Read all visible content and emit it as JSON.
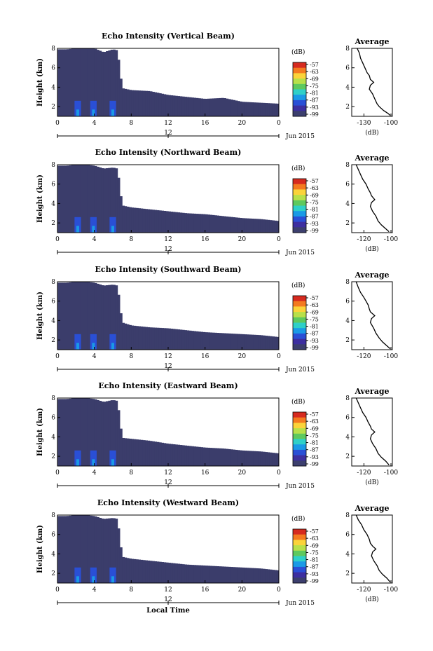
{
  "figure": {
    "xlabel": "Local Time",
    "date_label": "Jun 2015",
    "ylabel": "Height (km)",
    "colorbar_unit": "(dB)",
    "colorbar_ticks": [
      "-57",
      "-63",
      "-69",
      "-75",
      "-81",
      "-87",
      "-93",
      "-99"
    ],
    "colorbar_colors": [
      "#d62a1f",
      "#f47a20",
      "#fbd33a",
      "#b8e04a",
      "#5ec95e",
      "#2fd0c8",
      "#1a9ae6",
      "#2a4fd6",
      "#3d2fa0",
      "#3c3f6e"
    ],
    "cell_color": "#3b3d6b",
    "hour_ticks": [
      "0",
      "4",
      "8",
      "12",
      "16",
      "20",
      "0"
    ],
    "day_tick": "12",
    "height_ticks": [
      "2",
      "4",
      "6",
      "8"
    ],
    "avg_xlabel": "(dB)"
  },
  "chart_data": [
    {
      "type": "heatmap",
      "title": "Echo Intensity (Vertical Beam)",
      "xlabel": "",
      "ylabel": "Height (km)",
      "x_range_hours": [
        0,
        24
      ],
      "y_range_km": [
        1,
        8
      ],
      "cloud_top_km": [
        [
          0,
          7.9
        ],
        [
          1,
          7.9
        ],
        [
          2,
          8
        ],
        [
          3,
          8
        ],
        [
          4,
          8
        ],
        [
          5,
          7.6
        ],
        [
          6,
          7.9
        ],
        [
          6.5,
          7.8
        ],
        [
          7,
          3.9
        ],
        [
          8,
          3.7
        ],
        [
          10,
          3.6
        ],
        [
          12,
          3.2
        ],
        [
          14,
          3.0
        ],
        [
          16,
          2.8
        ],
        [
          18,
          2.9
        ],
        [
          20,
          2.5
        ],
        [
          22,
          2.4
        ],
        [
          24,
          2.3
        ]
      ],
      "colorbar": {
        "unit": "(dB)",
        "ticks": [
          -57,
          -63,
          -69,
          -75,
          -81,
          -87,
          -93,
          -99
        ]
      },
      "average_profile": {
        "title": "Average",
        "xlabel": "(dB)",
        "x_ticks": [
          "-130",
          "-100"
        ],
        "xlim": [
          -135,
          -98
        ],
        "ylim": [
          1,
          8
        ],
        "points": [
          [
            -130,
            8
          ],
          [
            -128,
            7.5
          ],
          [
            -127,
            7
          ],
          [
            -125,
            6.5
          ],
          [
            -123,
            6
          ],
          [
            -121,
            5.5
          ],
          [
            -119,
            5.2
          ],
          [
            -118,
            4.8
          ],
          [
            -115,
            4.5
          ],
          [
            -118,
            4.2
          ],
          [
            -119,
            3.8
          ],
          [
            -116,
            3.3
          ],
          [
            -114,
            2.8
          ],
          [
            -112,
            2.3
          ],
          [
            -110,
            2.0
          ],
          [
            -106,
            1.6
          ],
          [
            -102,
            1.3
          ],
          [
            -100,
            1.1
          ]
        ]
      }
    },
    {
      "type": "heatmap",
      "title": "Echo Intensity (Northward Beam)",
      "xlabel": "",
      "ylabel": "Height (km)",
      "x_range_hours": [
        0,
        24
      ],
      "y_range_km": [
        1,
        8
      ],
      "cloud_top_km": [
        [
          0,
          7.9
        ],
        [
          1,
          7.9
        ],
        [
          2,
          8
        ],
        [
          3,
          8
        ],
        [
          4,
          7.9
        ],
        [
          5,
          7.6
        ],
        [
          6,
          7.7
        ],
        [
          6.5,
          7.6
        ],
        [
          7,
          3.8
        ],
        [
          8,
          3.6
        ],
        [
          10,
          3.4
        ],
        [
          12,
          3.2
        ],
        [
          14,
          3.0
        ],
        [
          16,
          2.9
        ],
        [
          18,
          2.7
        ],
        [
          20,
          2.5
        ],
        [
          22,
          2.4
        ],
        [
          24,
          2.2
        ]
      ],
      "colorbar": {
        "unit": "(dB)",
        "ticks": [
          -57,
          -63,
          -69,
          -75,
          -81,
          -87,
          -93,
          -99
        ]
      },
      "average_profile": {
        "title": "Average",
        "xlabel": "(dB)",
        "x_ticks": [
          "-120",
          "-100"
        ],
        "xlim": [
          -135,
          -98
        ],
        "ylim": [
          1,
          8
        ],
        "points": [
          [
            -131,
            8
          ],
          [
            -129,
            7.5
          ],
          [
            -127,
            7
          ],
          [
            -125,
            6.5
          ],
          [
            -122,
            6
          ],
          [
            -120,
            5.5
          ],
          [
            -118,
            5.1
          ],
          [
            -117,
            4.8
          ],
          [
            -114,
            4.4
          ],
          [
            -117,
            4.1
          ],
          [
            -118,
            3.7
          ],
          [
            -116,
            3.2
          ],
          [
            -113,
            2.7
          ],
          [
            -111,
            2.2
          ],
          [
            -108,
            1.8
          ],
          [
            -104,
            1.4
          ],
          [
            -101,
            1.1
          ]
        ]
      }
    },
    {
      "type": "heatmap",
      "title": "Echo Intensity (Southward Beam)",
      "xlabel": "",
      "ylabel": "Height (km)",
      "x_range_hours": [
        0,
        24
      ],
      "y_range_km": [
        1,
        8
      ],
      "cloud_top_km": [
        [
          0,
          7.9
        ],
        [
          1,
          7.9
        ],
        [
          2,
          8
        ],
        [
          3,
          8
        ],
        [
          4,
          7.9
        ],
        [
          5,
          7.6
        ],
        [
          6,
          7.7
        ],
        [
          6.5,
          7.6
        ],
        [
          7,
          3.8
        ],
        [
          8,
          3.5
        ],
        [
          10,
          3.3
        ],
        [
          12,
          3.2
        ],
        [
          14,
          3.0
        ],
        [
          16,
          2.8
        ],
        [
          18,
          2.7
        ],
        [
          20,
          2.6
        ],
        [
          22,
          2.5
        ],
        [
          24,
          2.3
        ]
      ],
      "colorbar": {
        "unit": "(dB)",
        "ticks": [
          -57,
          -63,
          -69,
          -75,
          -81,
          -87,
          -93,
          -99
        ]
      },
      "average_profile": {
        "title": "Average",
        "xlabel": "",
        "x_ticks": [
          "-120",
          "-100"
        ],
        "xlim": [
          -135,
          -98
        ],
        "ylim": [
          1,
          8
        ],
        "points": [
          [
            -131,
            8
          ],
          [
            -129,
            7.4
          ],
          [
            -127,
            6.9
          ],
          [
            -124,
            6.4
          ],
          [
            -122,
            6
          ],
          [
            -120,
            5.6
          ],
          [
            -119,
            5.2
          ],
          [
            -118,
            4.9
          ],
          [
            -114,
            4.5
          ],
          [
            -117,
            4.2
          ],
          [
            -118,
            3.8
          ],
          [
            -115,
            3.2
          ],
          [
            -113,
            2.7
          ],
          [
            -110,
            2.2
          ],
          [
            -107,
            1.8
          ],
          [
            -103,
            1.4
          ],
          [
            -100,
            1.1
          ]
        ]
      }
    },
    {
      "type": "heatmap",
      "title": "Echo Intensity (Eastward Beam)",
      "xlabel": "",
      "ylabel": "Height (km)",
      "x_range_hours": [
        0,
        24
      ],
      "y_range_km": [
        1,
        8
      ],
      "cloud_top_km": [
        [
          0,
          7.9
        ],
        [
          1,
          7.9
        ],
        [
          2,
          8
        ],
        [
          3,
          8
        ],
        [
          4,
          7.9
        ],
        [
          5,
          7.6
        ],
        [
          6,
          7.8
        ],
        [
          6.5,
          7.7
        ],
        [
          7,
          3.9
        ],
        [
          8,
          3.8
        ],
        [
          10,
          3.6
        ],
        [
          12,
          3.3
        ],
        [
          14,
          3.1
        ],
        [
          16,
          2.9
        ],
        [
          18,
          2.8
        ],
        [
          20,
          2.6
        ],
        [
          22,
          2.5
        ],
        [
          24,
          2.3
        ]
      ],
      "colorbar": {
        "unit": "(dB)",
        "ticks": [
          -57,
          -63,
          -69,
          -75,
          -81,
          -87,
          -93,
          -99
        ]
      },
      "average_profile": {
        "title": "Average",
        "xlabel": "(dB)",
        "x_ticks": [
          "-120",
          "-100"
        ],
        "xlim": [
          -135,
          -98
        ],
        "ylim": [
          1,
          8
        ],
        "points": [
          [
            -131,
            8
          ],
          [
            -129,
            7.5
          ],
          [
            -127,
            7
          ],
          [
            -125,
            6.5
          ],
          [
            -122,
            6
          ],
          [
            -120,
            5.5
          ],
          [
            -118,
            5.1
          ],
          [
            -117,
            4.8
          ],
          [
            -114,
            4.5
          ],
          [
            -117,
            4.2
          ],
          [
            -118,
            3.8
          ],
          [
            -116,
            3.3
          ],
          [
            -113,
            2.8
          ],
          [
            -111,
            2.3
          ],
          [
            -108,
            1.9
          ],
          [
            -104,
            1.5
          ],
          [
            -101,
            1.1
          ]
        ]
      }
    },
    {
      "type": "heatmap",
      "title": "Echo Intensity (Westward Beam)",
      "xlabel": "Local Time",
      "ylabel": "Height (km)",
      "x_range_hours": [
        0,
        24
      ],
      "y_range_km": [
        1,
        8
      ],
      "cloud_top_km": [
        [
          0,
          7.9
        ],
        [
          1,
          7.9
        ],
        [
          2,
          8
        ],
        [
          3,
          8
        ],
        [
          4,
          7.9
        ],
        [
          5,
          7.6
        ],
        [
          6,
          7.7
        ],
        [
          6.5,
          7.6
        ],
        [
          7,
          3.7
        ],
        [
          8,
          3.5
        ],
        [
          10,
          3.3
        ],
        [
          12,
          3.1
        ],
        [
          14,
          2.9
        ],
        [
          16,
          2.8
        ],
        [
          18,
          2.7
        ],
        [
          20,
          2.6
        ],
        [
          22,
          2.5
        ],
        [
          24,
          2.3
        ]
      ],
      "colorbar": {
        "unit": "(dB)",
        "ticks": [
          -57,
          -63,
          -69,
          -75,
          -81,
          -87,
          -93,
          -99
        ]
      },
      "average_profile": {
        "title": "Average",
        "xlabel": "(dB)",
        "x_ticks": [
          "-120",
          "-100"
        ],
        "xlim": [
          -135,
          -98
        ],
        "ylim": [
          1,
          8
        ],
        "points": [
          [
            -131,
            8
          ],
          [
            -129,
            7.5
          ],
          [
            -126,
            7
          ],
          [
            -124,
            6.5
          ],
          [
            -121,
            6
          ],
          [
            -119,
            5.5
          ],
          [
            -118,
            5.1
          ],
          [
            -116,
            4.8
          ],
          [
            -113,
            4.5
          ],
          [
            -116,
            4.2
          ],
          [
            -117,
            3.8
          ],
          [
            -115,
            3.3
          ],
          [
            -112,
            2.8
          ],
          [
            -110,
            2.3
          ],
          [
            -107,
            1.9
          ],
          [
            -103,
            1.5
          ],
          [
            -100,
            1.1
          ]
        ]
      }
    }
  ]
}
